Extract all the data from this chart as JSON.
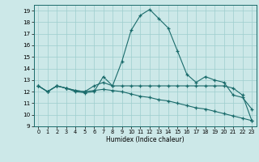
{
  "xlabel": "Humidex (Indice chaleur)",
  "bg_color": "#cce8e8",
  "grid_color": "#9ecece",
  "line_color": "#1a6b6b",
  "xlim": [
    -0.5,
    23.5
  ],
  "ylim": [
    9,
    19.5
  ],
  "yticks": [
    9,
    10,
    11,
    12,
    13,
    14,
    15,
    16,
    17,
    18,
    19
  ],
  "xticks": [
    0,
    1,
    2,
    3,
    4,
    5,
    6,
    7,
    8,
    9,
    10,
    11,
    12,
    13,
    14,
    15,
    16,
    17,
    18,
    19,
    20,
    21,
    22,
    23
  ],
  "line1_x": [
    0,
    1,
    2,
    3,
    4,
    5,
    6,
    7,
    8,
    9,
    10,
    11,
    12,
    13,
    14,
    15,
    16,
    17,
    18,
    19,
    20,
    21,
    22,
    23
  ],
  "line1_y": [
    12.5,
    12.0,
    12.5,
    12.3,
    12.0,
    11.9,
    12.0,
    13.3,
    12.5,
    14.6,
    17.3,
    18.6,
    19.1,
    18.3,
    17.5,
    15.5,
    13.5,
    12.8,
    13.3,
    13.0,
    12.8,
    11.7,
    11.5,
    10.5
  ],
  "line2_x": [
    0,
    1,
    2,
    3,
    4,
    5,
    6,
    7,
    8,
    9,
    10,
    11,
    12,
    13,
    14,
    15,
    16,
    17,
    18,
    19,
    20,
    21,
    22,
    23
  ],
  "line2_y": [
    12.5,
    12.0,
    12.5,
    12.3,
    12.1,
    12.0,
    12.5,
    12.8,
    12.5,
    12.5,
    12.5,
    12.5,
    12.5,
    12.5,
    12.5,
    12.5,
    12.5,
    12.5,
    12.5,
    12.5,
    12.5,
    12.3,
    11.7,
    9.5
  ],
  "line3_x": [
    0,
    1,
    2,
    3,
    4,
    5,
    6,
    7,
    8,
    9,
    10,
    11,
    12,
    13,
    14,
    15,
    16,
    17,
    18,
    19,
    20,
    21,
    22,
    23
  ],
  "line3_y": [
    12.5,
    12.0,
    12.5,
    12.3,
    12.1,
    12.0,
    12.1,
    12.2,
    12.1,
    12.0,
    11.8,
    11.6,
    11.5,
    11.3,
    11.2,
    11.0,
    10.8,
    10.6,
    10.5,
    10.3,
    10.1,
    9.9,
    9.7,
    9.5
  ]
}
